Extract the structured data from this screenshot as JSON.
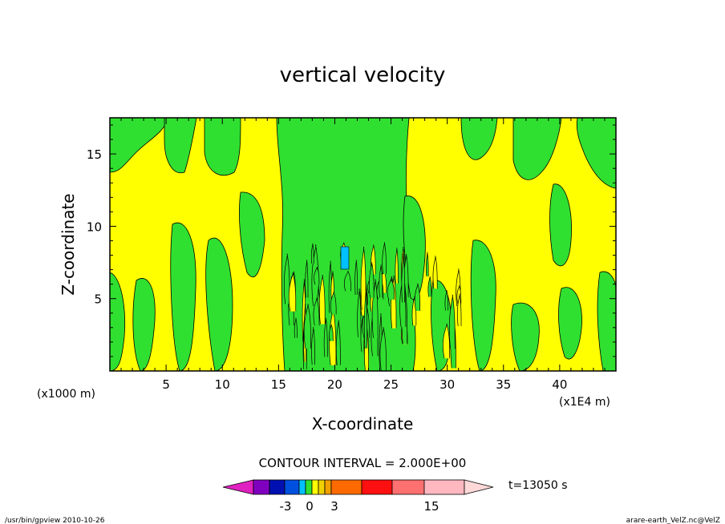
{
  "chart_data": {
    "type": "heatmap",
    "title": "vertical velocity",
    "xlabel": "X-coordinate",
    "ylabel": "Z-coordinate",
    "x_unit_left": "(x1000 m)",
    "x_unit_right": "(x1E4 m)",
    "xlim": [
      0,
      45
    ],
    "ylim": [
      0,
      17.5
    ],
    "x_ticks": [
      5,
      10,
      15,
      20,
      25,
      30,
      35,
      40
    ],
    "x_tick_labels": [
      "5",
      "10",
      "15",
      "20",
      "25",
      "30",
      "35",
      "40"
    ],
    "y_ticks": [
      5,
      10,
      15
    ],
    "y_tick_labels": [
      "5",
      "10",
      "15"
    ],
    "contour_interval": "CONTOUR INTERVAL = 2.000E+00",
    "time_label": "t=13050 s",
    "colorbar": {
      "tick_labels": [
        "-3",
        "0",
        "3",
        "15"
      ],
      "colors": [
        "#e020c0",
        "#8000c0",
        "#0010b0",
        "#0050e0",
        "#00c0ff",
        "#30e030",
        "#ffff00",
        "#f0d000",
        "#f0a000",
        "#ff6a00",
        "#ff1010",
        "#ff7070",
        "#ffb8c0",
        "#ffd8d8"
      ]
    },
    "regions": {
      "background": "#ffff00",
      "positive": "#30e030",
      "strong_negative": "#00c0ff"
    },
    "grid": false
  },
  "footer": {
    "left": "/usr/bin/gpview   2010-10-26",
    "right": "arare-earth_VelZ.nc@VelZ"
  }
}
